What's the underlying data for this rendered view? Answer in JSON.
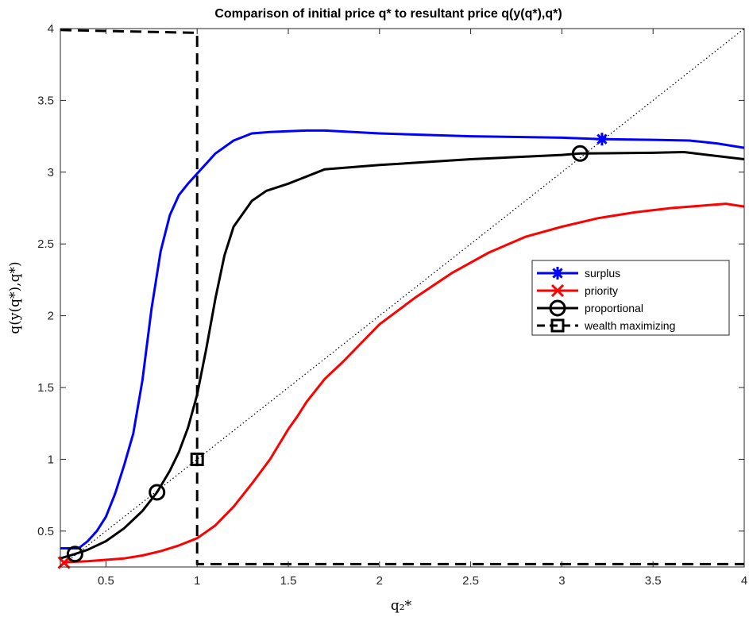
{
  "chart_data": {
    "type": "line",
    "title": "Comparison of initial price q* to resultant price q(y(q*),q*)",
    "xlabel": "q₂*",
    "ylabel": "q(y(q*),q*)",
    "xlim": [
      0.25,
      4
    ],
    "ylim": [
      0.25,
      4
    ],
    "xticks": [
      0.5,
      1,
      1.5,
      2,
      2.5,
      3,
      3.5,
      4
    ],
    "xtick_labels": [
      "0.5",
      "1",
      "1.5",
      "2",
      "2.5",
      "3",
      "3.5",
      "4"
    ],
    "yticks": [
      0.5,
      1,
      1.5,
      2,
      2.5,
      3,
      3.5,
      4
    ],
    "ytick_labels": [
      "0.5",
      "1",
      "1.5",
      "2",
      "2.5",
      "3",
      "3.5",
      "4"
    ],
    "grid": false,
    "legend_position": "right",
    "series": [
      {
        "name": "surplus",
        "color": "#0000ff",
        "marker": "asterisk",
        "x": [
          0.25,
          0.35,
          0.4,
          0.45,
          0.5,
          0.55,
          0.6,
          0.65,
          0.7,
          0.75,
          0.8,
          0.85,
          0.9,
          0.95,
          1.0,
          1.05,
          1.1,
          1.2,
          1.3,
          1.35,
          1.4,
          1.5,
          1.6,
          1.7,
          2.0,
          2.5,
          3.0,
          3.22,
          3.5,
          3.7,
          3.85,
          4.0
        ],
        "y": [
          0.38,
          0.38,
          0.43,
          0.5,
          0.6,
          0.76,
          0.96,
          1.18,
          1.55,
          2.05,
          2.45,
          2.7,
          2.84,
          2.92,
          2.99,
          3.06,
          3.13,
          3.22,
          3.27,
          3.275,
          3.28,
          3.285,
          3.29,
          3.29,
          3.27,
          3.25,
          3.24,
          3.23,
          3.225,
          3.22,
          3.2,
          3.17
        ],
        "markers": [
          {
            "x": 3.22,
            "y": 3.23
          }
        ]
      },
      {
        "name": "priority",
        "color": "#ff0000",
        "marker": "x",
        "x": [
          0.27,
          0.3,
          0.4,
          0.5,
          0.6,
          0.7,
          0.8,
          0.9,
          1.0,
          1.1,
          1.2,
          1.3,
          1.4,
          1.5,
          1.55,
          1.6,
          1.7,
          1.8,
          1.9,
          2.0,
          2.2,
          2.4,
          2.6,
          2.8,
          3.0,
          3.2,
          3.4,
          3.6,
          3.8,
          3.9,
          4.0
        ],
        "y": [
          0.28,
          0.285,
          0.29,
          0.3,
          0.31,
          0.33,
          0.36,
          0.4,
          0.45,
          0.54,
          0.67,
          0.83,
          1.0,
          1.21,
          1.3,
          1.4,
          1.56,
          1.68,
          1.81,
          1.94,
          2.13,
          2.3,
          2.44,
          2.55,
          2.62,
          2.68,
          2.72,
          2.75,
          2.77,
          2.78,
          2.76
        ],
        "markers": [
          {
            "x": 0.27,
            "y": 0.28
          }
        ]
      },
      {
        "name": "proportional",
        "color": "#000000",
        "marker": "circle",
        "x": [
          0.25,
          0.33,
          0.4,
          0.5,
          0.6,
          0.7,
          0.78,
          0.85,
          0.9,
          0.95,
          1.0,
          1.05,
          1.1,
          1.15,
          1.2,
          1.3,
          1.38,
          1.5,
          1.7,
          2.0,
          2.5,
          3.0,
          3.1,
          3.5,
          3.67,
          3.8,
          4.0
        ],
        "y": [
          0.31,
          0.34,
          0.37,
          0.43,
          0.52,
          0.64,
          0.77,
          0.92,
          1.05,
          1.22,
          1.45,
          1.77,
          2.12,
          2.42,
          2.62,
          2.8,
          2.87,
          2.92,
          3.02,
          3.05,
          3.09,
          3.12,
          3.13,
          3.135,
          3.14,
          3.12,
          3.09
        ],
        "markers": [
          {
            "x": 0.33,
            "y": 0.34
          },
          {
            "x": 0.78,
            "y": 0.77
          },
          {
            "x": 3.1,
            "y": 3.13
          }
        ]
      },
      {
        "name": "wealth maximizing",
        "color": "#000000",
        "marker": "square",
        "dashed": true,
        "x": [
          0.25,
          1.0,
          1.0,
          1.0,
          4.0
        ],
        "y": [
          3.99,
          3.97,
          3.97,
          0.27,
          0.27
        ],
        "markers": [
          {
            "x": 1.0,
            "y": 1.0
          }
        ]
      }
    ],
    "reference_line": {
      "style": "dotted",
      "x": [
        0.25,
        4
      ],
      "y": [
        0.25,
        4
      ]
    }
  }
}
